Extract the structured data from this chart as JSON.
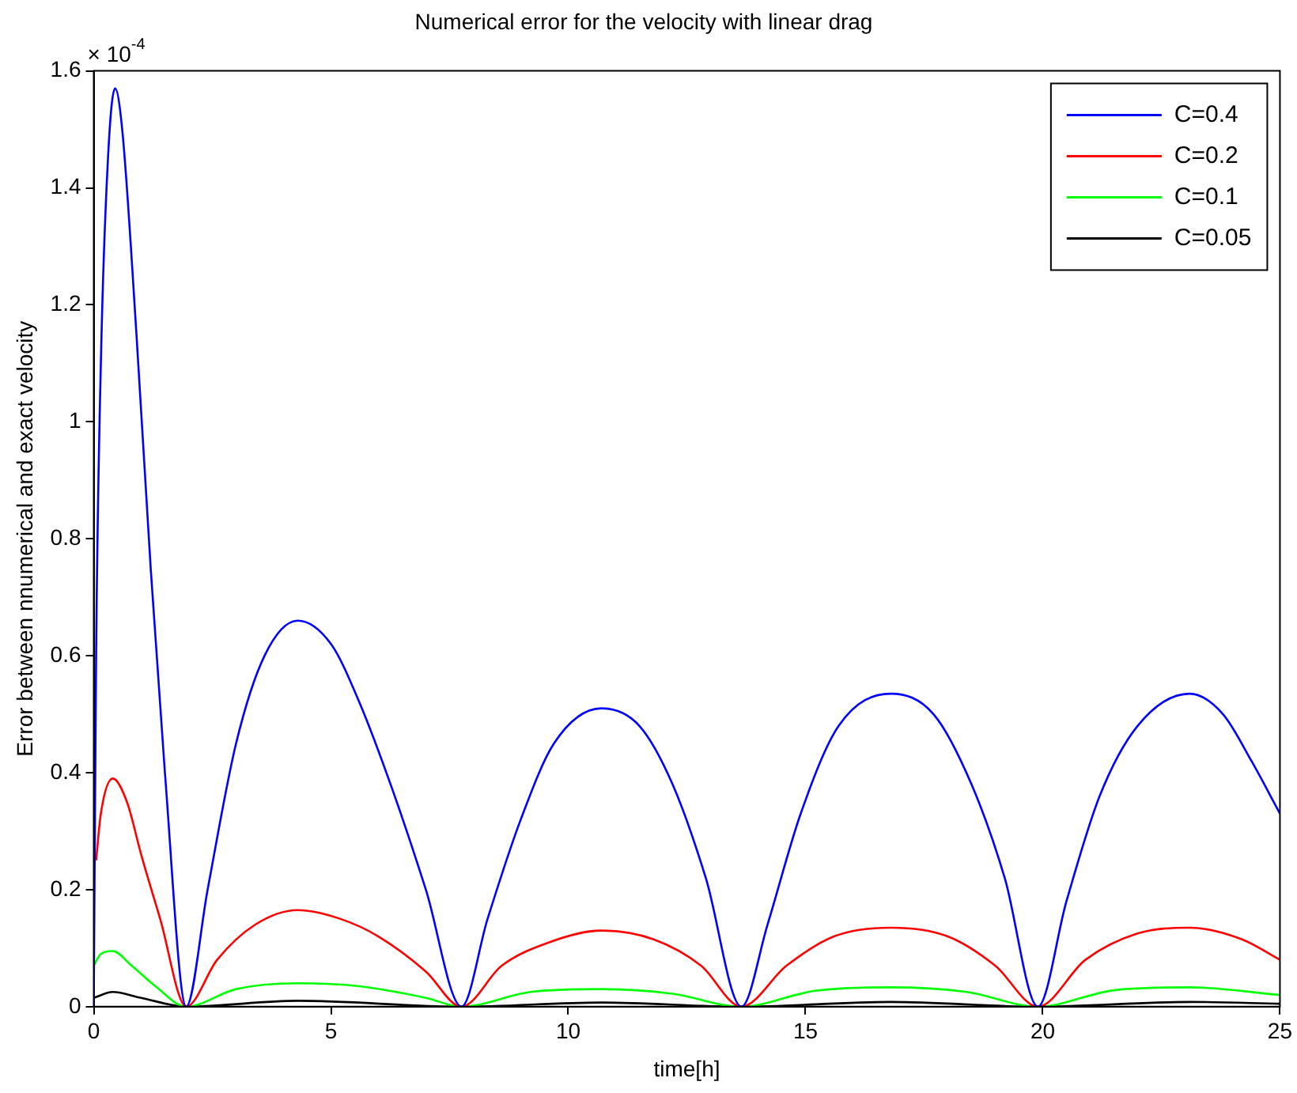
{
  "chart_data": {
    "type": "line",
    "title": "Numerical error for the velocity with linear drag",
    "xlabel": "time[h]",
    "ylabel": "Error between nnumerical and exact velocity",
    "annotations": [
      "× 10$^{-4}$"
    ],
    "xlim": [
      0,
      25
    ],
    "xticks": [
      0,
      5,
      10,
      15,
      20,
      25
    ],
    "ylim": [
      0,
      1.6
    ],
    "yticks": [
      0,
      0.2,
      0.4,
      0.6,
      0.8,
      1,
      1.2,
      1.4,
      1.6
    ],
    "grid": false,
    "legend": "top right",
    "marker": "none",
    "line_style": "solid",
    "series": [
      {
        "name": "C=0.4",
        "color": "#0000ff",
        "x": [
          0,
          0.05,
          0.15,
          0.3,
          0.45,
          0.6,
          0.9,
          1.2,
          1.5,
          1.95,
          2.4,
          3.0,
          3.6,
          4.3,
          5.0,
          5.6,
          6.3,
          7.0,
          7.75,
          8.3,
          9.0,
          9.7,
          10.7,
          11.5,
          12.2,
          12.9,
          13.65,
          14.2,
          14.9,
          15.7,
          16.8,
          17.7,
          18.5,
          19.2,
          19.9,
          20.5,
          21.2,
          22.0,
          23.1,
          23.8,
          24.4,
          25
        ],
        "values": [
          0,
          0.6,
          1.1,
          1.45,
          1.57,
          1.5,
          1.15,
          0.75,
          0.4,
          0,
          0.2,
          0.45,
          0.6,
          0.66,
          0.62,
          0.52,
          0.37,
          0.2,
          0,
          0.15,
          0.32,
          0.45,
          0.51,
          0.48,
          0.38,
          0.22,
          0,
          0.14,
          0.33,
          0.48,
          0.535,
          0.5,
          0.38,
          0.22,
          0,
          0.18,
          0.36,
          0.48,
          0.535,
          0.5,
          0.42,
          0.33
        ]
      },
      {
        "name": "C=0.2",
        "color": "#ff0000",
        "x": [
          0.05,
          0.15,
          0.4,
          0.7,
          1.0,
          1.4,
          1.95,
          2.6,
          3.4,
          4.3,
          5.2,
          6.0,
          7.0,
          7.75,
          8.6,
          9.6,
          10.7,
          11.8,
          12.8,
          13.65,
          14.6,
          15.6,
          16.8,
          18.0,
          19.0,
          19.9,
          20.9,
          22.0,
          23.1,
          24.2,
          25
        ],
        "values": [
          0.25,
          0.33,
          0.39,
          0.35,
          0.26,
          0.15,
          0,
          0.08,
          0.14,
          0.165,
          0.15,
          0.12,
          0.06,
          0,
          0.07,
          0.11,
          0.13,
          0.115,
          0.07,
          0,
          0.07,
          0.12,
          0.135,
          0.12,
          0.07,
          0,
          0.08,
          0.125,
          0.135,
          0.115,
          0.08
        ]
      },
      {
        "name": "C=0.1",
        "color": "#00ff00",
        "x": [
          0,
          0.15,
          0.4,
          0.8,
          1.3,
          1.95,
          3.0,
          4.3,
          5.6,
          7.0,
          7.75,
          9.2,
          10.7,
          12.2,
          13.65,
          15.2,
          16.8,
          18.4,
          19.9,
          21.5,
          23.1,
          25
        ],
        "values": [
          0.07,
          0.09,
          0.095,
          0.07,
          0.035,
          0,
          0.03,
          0.04,
          0.035,
          0.015,
          0,
          0.025,
          0.03,
          0.022,
          0,
          0.027,
          0.033,
          0.025,
          0,
          0.028,
          0.033,
          0.02
        ]
      },
      {
        "name": "C=0.05",
        "color": "#000000",
        "x": [
          0,
          0.4,
          1.0,
          1.95,
          4.3,
          7.75,
          10.7,
          13.65,
          16.8,
          19.9,
          23.1,
          25
        ],
        "values": [
          0.015,
          0.025,
          0.015,
          0,
          0.01,
          0,
          0.007,
          0,
          0.008,
          0,
          0.008,
          0.005
        ]
      }
    ]
  }
}
